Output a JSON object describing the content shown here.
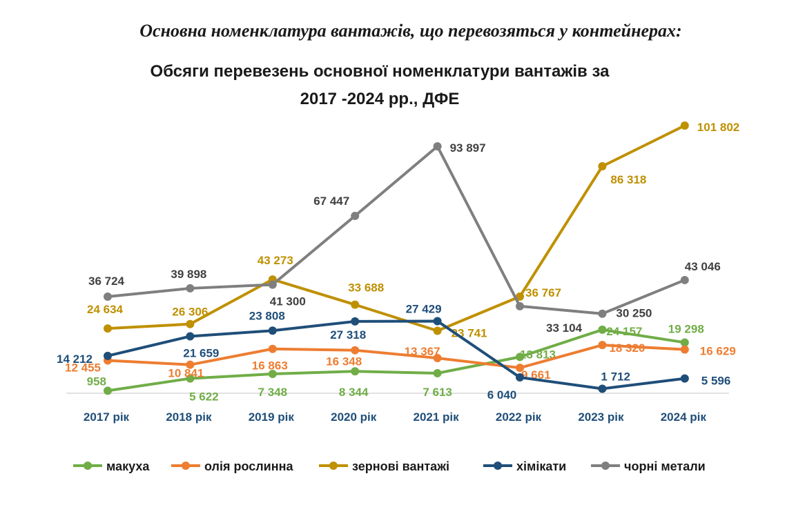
{
  "heading": "Основна номенклатура вантажів, що перевозяться у контейнерах:",
  "chart_data": {
    "type": "line",
    "title_lines": [
      "Обсяги перевезень основної номенклатури вантажів за",
      "2017 -2024 рр., ДФЕ"
    ],
    "categories": [
      "2017 рік",
      "2018 рік",
      "2019 рік",
      "2020 рік",
      "2021 рік",
      "2022 рік",
      "2023 рік",
      "2024 рік"
    ],
    "ylim": [
      0,
      105000
    ],
    "grid": false,
    "legend_position": "bottom",
    "series": [
      {
        "name": "макуха",
        "color": "#70ad47",
        "values": [
          958,
          5622,
          7348,
          8344,
          7613,
          13813,
          24157,
          19298
        ],
        "labels": [
          "958",
          "5 622",
          "7 348",
          "8 344",
          "7 613",
          "13 813",
          "24 157",
          "19 298"
        ]
      },
      {
        "name": "олія рослинна",
        "color": "#ed7d31",
        "values": [
          12455,
          10841,
          16863,
          16348,
          13367,
          9661,
          18320,
          16629
        ],
        "labels": [
          "12 455",
          "10 841",
          "16 863",
          "16 348",
          "13 367",
          "9 661",
          "18 320",
          "16 629"
        ]
      },
      {
        "name": "зернові вантажі",
        "color": "#bf9000",
        "values": [
          24634,
          26306,
          43273,
          33688,
          23741,
          36767,
          86318,
          101802
        ],
        "labels": [
          "24 634",
          "26 306",
          "43 273",
          "33 688",
          "23 741",
          "36 767",
          "86 318",
          "101 802"
        ]
      },
      {
        "name": "хімікати",
        "color": "#1f4e79",
        "values": [
          14212,
          21659,
          23808,
          27318,
          27429,
          6040,
          1712,
          5596
        ],
        "labels": [
          "14 212",
          "21 659",
          "23 808",
          "27 318",
          "27 429",
          "6 040",
          "1 712",
          "5 596"
        ]
      },
      {
        "name": "чорні метали",
        "color": "#7f7f7f",
        "label_color": "#404040",
        "values": [
          36724,
          39898,
          41300,
          67447,
          93897,
          33104,
          30250,
          43046
        ],
        "labels": [
          "36 724",
          "39 898",
          "41 300",
          "67 447",
          "93 897",
          "33 104",
          "30 250",
          "43 046"
        ]
      }
    ]
  }
}
